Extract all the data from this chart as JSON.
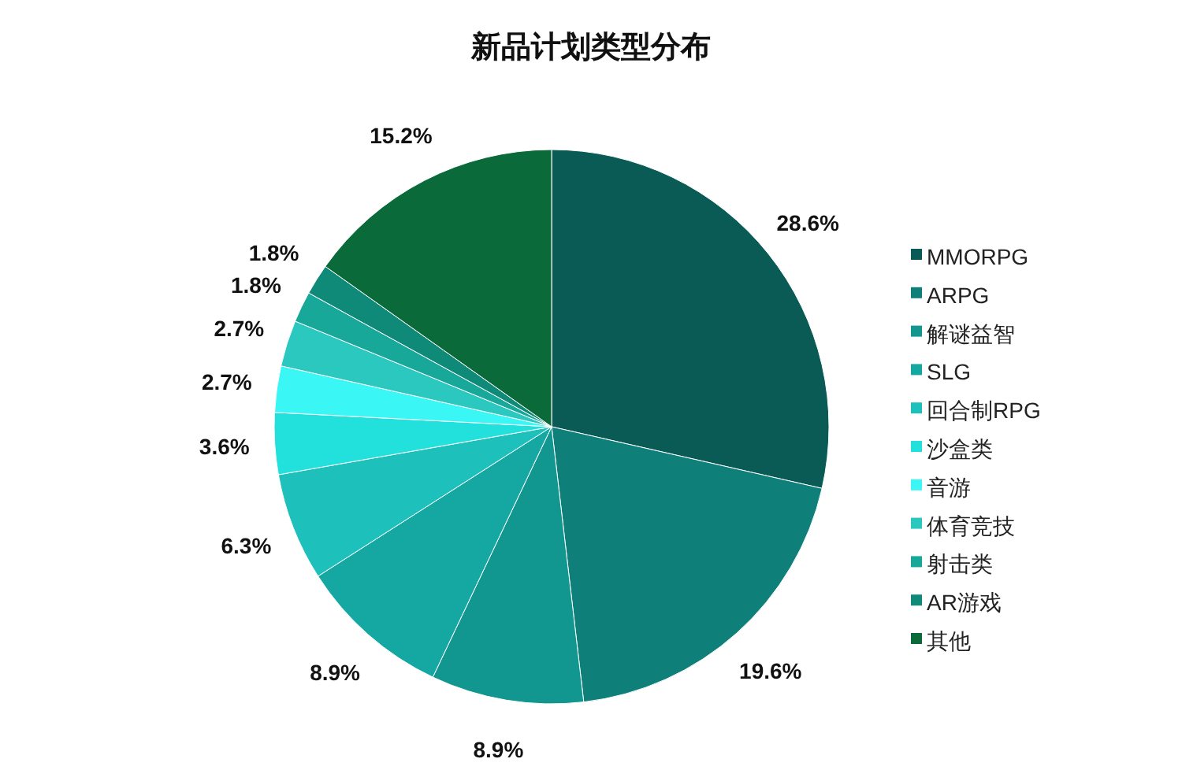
{
  "chart_data": {
    "type": "pie",
    "title": "新品计划类型分布",
    "categories": [
      "MMORPG",
      "ARPG",
      "解谜益智",
      "SLG",
      "回合制RPG",
      "沙盒类",
      "音游",
      "体育竞技",
      "射击类",
      "AR游戏",
      "其他"
    ],
    "values": [
      28.6,
      19.6,
      8.9,
      8.9,
      6.3,
      3.6,
      2.7,
      2.7,
      1.8,
      1.8,
      15.2
    ],
    "colors": [
      "#0a5a55",
      "#0f7f7a",
      "#119690",
      "#15a8a2",
      "#1ec0bb",
      "#22e0dc",
      "#3af7f5",
      "#2bc8c0",
      "#18a89a",
      "#108a78",
      "#0a6a3a"
    ],
    "value_labels": [
      "28.6%",
      "19.6%",
      "8.9%",
      "8.9%",
      "6.3%",
      "3.6%",
      "2.7%",
      "2.7%",
      "1.8%",
      "1.8%",
      "15.2%"
    ],
    "legend": "right"
  }
}
